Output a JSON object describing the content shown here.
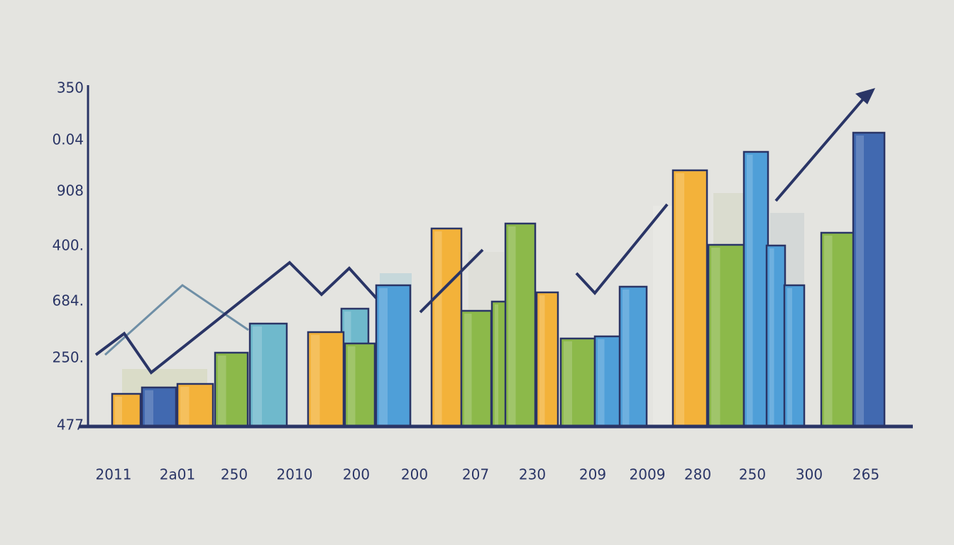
{
  "y_labels": [
    "350",
    "0.04",
    "908",
    "400.",
    "684.",
    "250.",
    "477"
  ],
  "x_labels": [
    "2011",
    "2a01",
    "250",
    "2010",
    "200",
    "200",
    "207",
    "230",
    "209",
    "2009",
    "280",
    "250",
    "300",
    "265"
  ]
}
